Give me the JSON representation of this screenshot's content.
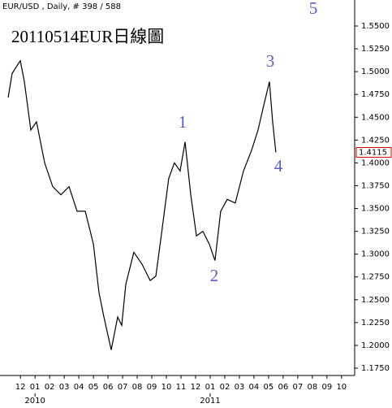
{
  "chart_data": {
    "type": "line",
    "header": "EUR/USD , Daily, # 398 / 588",
    "title": "20110514EUR日線圖",
    "annotations": [
      "5",
      "1",
      "3",
      "4",
      "2"
    ],
    "last_price": 1.4115,
    "series": [
      {
        "name": "EUR/USD",
        "color": "#000000",
        "x": [
          0.16,
          0.43,
          0.99,
          1.27,
          1.71,
          2.1,
          2.66,
          3.21,
          3.77,
          4.33,
          4.88,
          5.44,
          6.0,
          6.38,
          6.72,
          7.22,
          7.66,
          7.94,
          8.22,
          8.77,
          9.33,
          9.89,
          10.28,
          10.72,
          11.16,
          11.55,
          11.94,
          12.28,
          12.67,
          13.06,
          13.5,
          13.94,
          14.33,
          14.72,
          15.17,
          15.72,
          16.28,
          16.84,
          17.28,
          17.67,
          18.06,
          18.28,
          18.5
        ],
        "values": [
          1.4716,
          1.498,
          1.512,
          1.489,
          1.436,
          1.445,
          1.4,
          1.374,
          1.365,
          1.374,
          1.347,
          1.347,
          1.311,
          1.258,
          1.231,
          1.195,
          1.231,
          1.222,
          1.267,
          1.302,
          1.289,
          1.271,
          1.276,
          1.329,
          1.383,
          1.4,
          1.391,
          1.423,
          1.365,
          1.32,
          1.325,
          1.311,
          1.293,
          1.347,
          1.36,
          1.356,
          1.391,
          1.414,
          1.436,
          1.463,
          1.489,
          1.445,
          1.4115
        ]
      }
    ],
    "xlim": [
      -0.4,
      23.9
    ],
    "ylim": [
      1.167,
      1.5785
    ],
    "xticks": [
      {
        "value": 1,
        "label": "12"
      },
      {
        "value": 2,
        "label": "01"
      },
      {
        "value": 3,
        "label": "02"
      },
      {
        "value": 4,
        "label": "03"
      },
      {
        "value": 5,
        "label": "04"
      },
      {
        "value": 6,
        "label": "05"
      },
      {
        "value": 7,
        "label": "06"
      },
      {
        "value": 8,
        "label": "07"
      },
      {
        "value": 9,
        "label": "08"
      },
      {
        "value": 10,
        "label": "09"
      },
      {
        "value": 11,
        "label": "10"
      },
      {
        "value": 12,
        "label": "11"
      },
      {
        "value": 13,
        "label": "12"
      },
      {
        "value": 14,
        "label": "01"
      },
      {
        "value": 15,
        "label": "02"
      },
      {
        "value": 16,
        "label": "03"
      },
      {
        "value": 17,
        "label": "04"
      },
      {
        "value": 18,
        "label": "05"
      },
      {
        "value": 19,
        "label": "06"
      },
      {
        "value": 20,
        "label": "07"
      },
      {
        "value": 21,
        "label": "08"
      },
      {
        "value": 22,
        "label": "09"
      },
      {
        "value": 23,
        "label": "10"
      }
    ],
    "year_ticks": [
      {
        "value": 2,
        "label": "2010"
      },
      {
        "value": 14,
        "label": "2011"
      }
    ],
    "yticks": [
      {
        "value": 1.175,
        "label": "1.1750"
      },
      {
        "value": 1.2,
        "label": "1.2000"
      },
      {
        "value": 1.225,
        "label": "1.2250"
      },
      {
        "value": 1.25,
        "label": "1.2500"
      },
      {
        "value": 1.275,
        "label": "1.2750"
      },
      {
        "value": 1.3,
        "label": "1.3000"
      },
      {
        "value": 1.325,
        "label": "1.3250"
      },
      {
        "value": 1.35,
        "label": "1.3500"
      },
      {
        "value": 1.375,
        "label": "1.3750"
      },
      {
        "value": 1.4,
        "label": "1.4000"
      },
      {
        "value": 1.425,
        "label": "1.4250"
      },
      {
        "value": 1.45,
        "label": "1.4500"
      },
      {
        "value": 1.475,
        "label": "1.4750"
      },
      {
        "value": 1.5,
        "label": "1.5000"
      },
      {
        "value": 1.525,
        "label": "1.5250"
      },
      {
        "value": 1.55,
        "label": "1.5500"
      }
    ],
    "grid": false,
    "price_label_color": "#e00000"
  }
}
